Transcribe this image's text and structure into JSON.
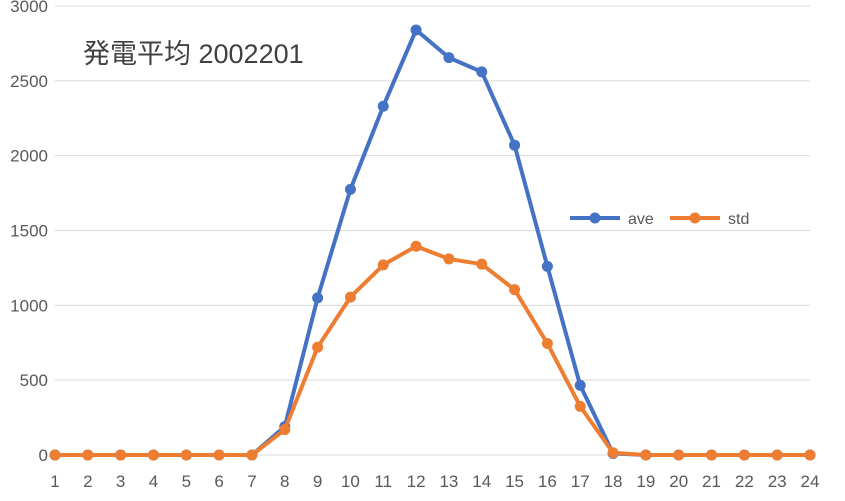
{
  "chart_data": {
    "type": "line",
    "title": "発電平均 2002201",
    "xlabel": "",
    "ylabel": "",
    "categories": [
      "1",
      "2",
      "3",
      "4",
      "5",
      "6",
      "7",
      "8",
      "9",
      "10",
      "11",
      "12",
      "13",
      "14",
      "15",
      "16",
      "17",
      "18",
      "19",
      "20",
      "21",
      "22",
      "23",
      "24"
    ],
    "ylim": [
      0,
      3000
    ],
    "yticks": [
      "0",
      "500",
      "1000",
      "1500",
      "2000",
      "2500",
      "3000"
    ],
    "grid": true,
    "legend_position": "right",
    "series": [
      {
        "name": "ave",
        "color": "#4472c4",
        "values": [
          0,
          0,
          0,
          0,
          0,
          0,
          0,
          190,
          1050,
          1775,
          2330,
          2840,
          2655,
          2560,
          2070,
          1260,
          465,
          10,
          0,
          0,
          0,
          0,
          0,
          0
        ]
      },
      {
        "name": "std",
        "color": "#ed7d31",
        "values": [
          0,
          0,
          0,
          0,
          0,
          0,
          0,
          170,
          720,
          1055,
          1270,
          1395,
          1310,
          1275,
          1105,
          745,
          325,
          15,
          0,
          0,
          0,
          0,
          0,
          0
        ]
      }
    ]
  }
}
